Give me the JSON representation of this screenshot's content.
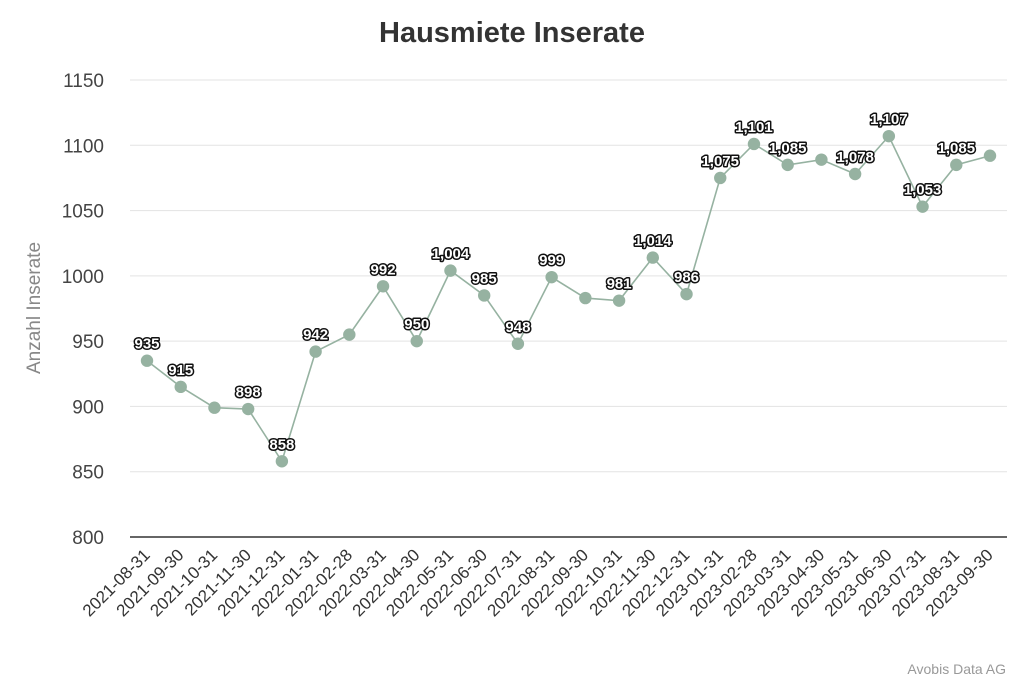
{
  "chart_data": {
    "type": "line",
    "title": "Hausmiete Inserate",
    "xlabel": "",
    "ylabel": "Anzahl Inserate",
    "ylim": [
      800,
      1150
    ],
    "yticks": [
      800,
      850,
      900,
      950,
      1000,
      1050,
      1100,
      1150
    ],
    "grid": true,
    "x": [
      "2021-08-31",
      "2021-09-30",
      "2021-10-31",
      "2021-11-30",
      "2021-12-31",
      "2022-01-31",
      "2022-02-28",
      "2022-03-31",
      "2022-04-30",
      "2022-05-31",
      "2022-06-30",
      "2022-07-31",
      "2022-08-31",
      "2022-09-30",
      "2022-10-31",
      "2022-11-30",
      "2022-12-31",
      "2023-01-31",
      "2023-02-28",
      "2023-03-31",
      "2023-04-30",
      "2023-05-31",
      "2023-06-30",
      "2023-07-31",
      "2023-08-31",
      "2023-09-30"
    ],
    "series": [
      {
        "values": [
          935,
          915,
          899,
          898,
          858,
          942,
          955,
          992,
          950,
          1004,
          985,
          948,
          999,
          983,
          981,
          1014,
          986,
          1075,
          1101,
          1085,
          1089,
          1078,
          1107,
          1053,
          1085,
          1092
        ],
        "labels": [
          "935",
          "915",
          "",
          "898",
          "858",
          "942",
          "",
          "992",
          "950",
          "1,004",
          "985",
          "948",
          "999",
          "",
          "981",
          "1,014",
          "986",
          "1,075",
          "1,101",
          "1,085",
          "",
          "1,078",
          "1,107",
          "1,053",
          "1,085",
          ""
        ],
        "color": "#96b2a1"
      }
    ]
  },
  "credit": "Avobis Data AG"
}
